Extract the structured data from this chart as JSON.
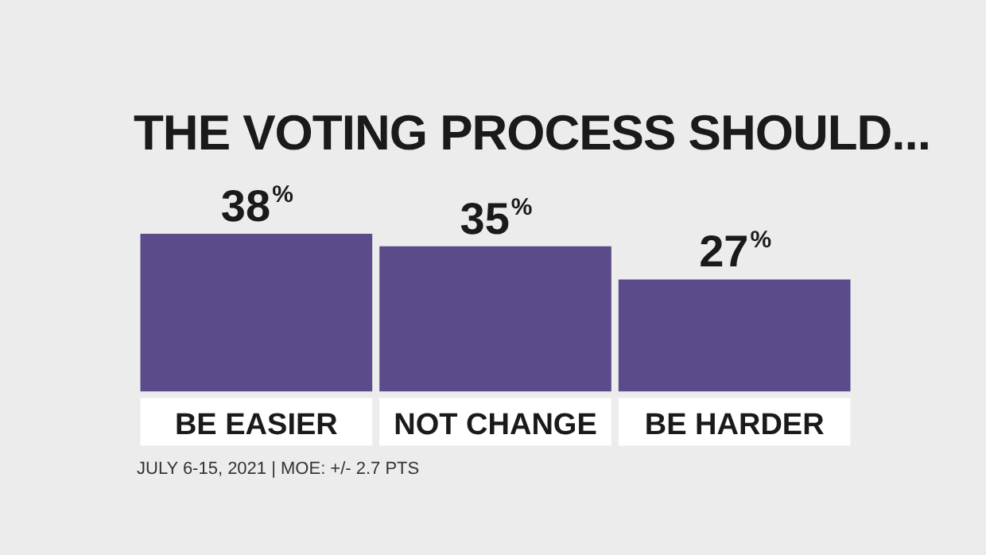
{
  "chart_data": {
    "type": "bar",
    "title": "THE VOTING PROCESS SHOULD...",
    "categories": [
      "BE EASIER",
      "NOT CHANGE",
      "BE HARDER"
    ],
    "values": [
      38,
      35,
      27
    ],
    "value_labels": [
      "38%",
      "35%",
      "27%"
    ],
    "color": "#5b4b8a",
    "annotations": [
      "JULY 6-15, 2021 | MOE: +/- 2.7 PTS"
    ],
    "grid": false,
    "legend": false
  }
}
